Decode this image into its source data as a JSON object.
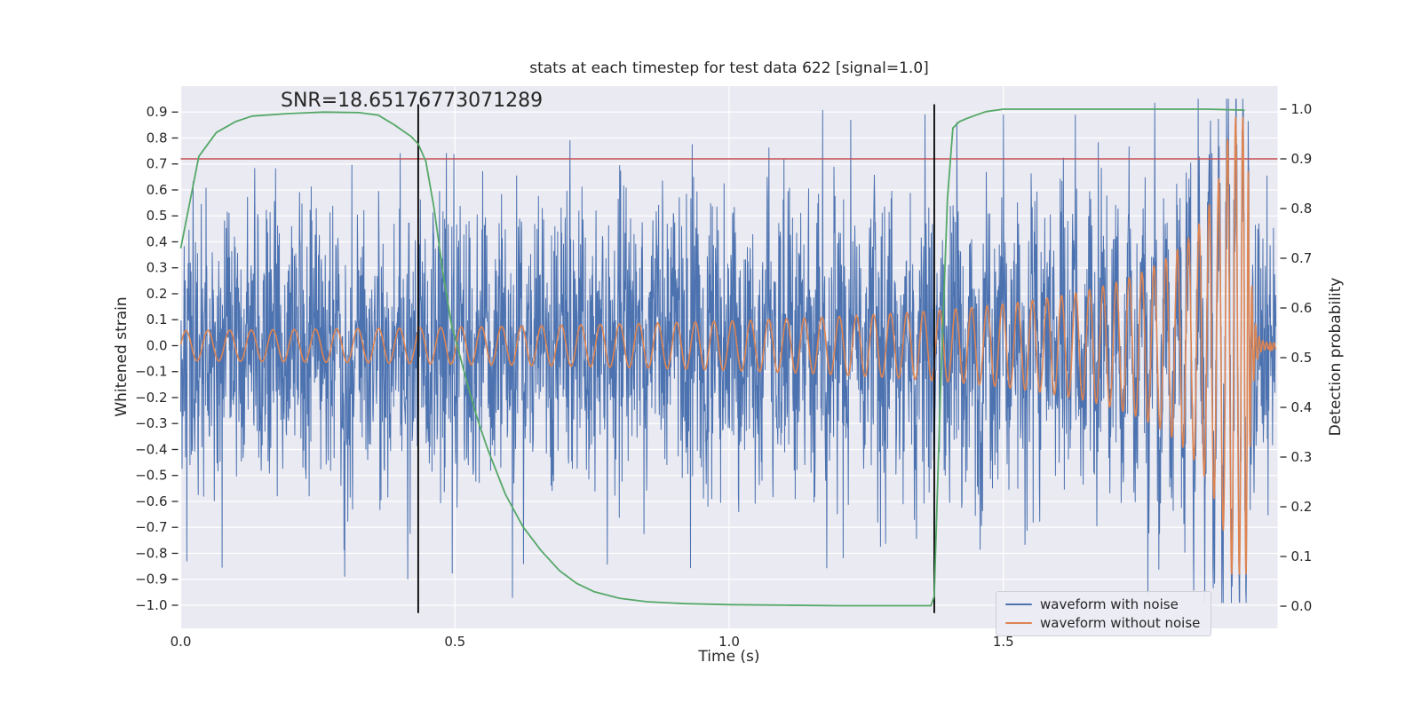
{
  "figure": {
    "title": "stats at each timestep for test data 622 [signal=1.0]"
  },
  "annotation": {
    "text": "SNR=18.65176773071289",
    "x": 0.185,
    "y_left_axis": 0.95
  },
  "legend": {
    "position": "lower right",
    "items": [
      {
        "label": "waveform with noise",
        "color": "#4C72B0"
      },
      {
        "label": "waveform without noise",
        "color": "#DD8452"
      }
    ]
  },
  "chart_data": {
    "type": "line",
    "title": "stats at each timestep for test data 622 [signal=1.0]",
    "xlabel": "Time (s)",
    "ylabel_left": "Whitened strain",
    "ylabel_right": "Detection probability",
    "xlim": [
      0.0,
      2.0
    ],
    "ylim_left": [
      -1.089,
      1.0
    ],
    "ylim_right": [
      -0.0446,
      1.0464
    ],
    "grid": true,
    "plot_bg": "#EAEAF2",
    "grid_color": "#FFFFFF",
    "text_color": "#262626",
    "xticks": {
      "values": [
        0.0,
        0.5,
        1.0,
        1.5
      ],
      "labels": [
        "0.0",
        "0.5",
        "1.0",
        "1.5"
      ]
    },
    "yticks_left": {
      "values": [
        0.9,
        0.8,
        0.7,
        0.6,
        0.5,
        0.4,
        0.3,
        0.2,
        0.1,
        0.0,
        -0.1,
        -0.2,
        -0.3,
        -0.4,
        -0.5,
        -0.6,
        -0.7,
        -0.8,
        -0.9,
        -1.0
      ],
      "labels": [
        "0.9",
        "0.8",
        "0.7",
        "0.6",
        "0.5",
        "0.4",
        "0.3",
        "0.2",
        "0.1",
        "0.0",
        "−0.1",
        "−0.2",
        "−0.3",
        "−0.4",
        "−0.5",
        "−0.6",
        "−0.7",
        "−0.8",
        "−0.9",
        "−1.0"
      ]
    },
    "yticks_right": {
      "values": [
        1.0,
        0.9,
        0.8,
        0.7,
        0.6,
        0.5,
        0.4,
        0.3,
        0.2,
        0.1,
        0.0
      ],
      "labels": [
        "1.0",
        "0.9",
        "0.8",
        "0.7",
        "0.6",
        "0.5",
        "0.4",
        "0.3",
        "0.2",
        "0.1",
        "0.0"
      ]
    },
    "threshold_line": {
      "axis": "right",
      "value": 0.9,
      "color": "#C44E52"
    },
    "vlines": {
      "xs": [
        0.433,
        1.374
      ],
      "color": "#000000",
      "ymin_left_axis": -1.03,
      "ymax_left_axis": 0.93
    },
    "series": [
      {
        "name": "waveform with noise",
        "axis": "left",
        "color": "#4C72B0",
        "kind": "gaussian_noise_plus_signal",
        "seed": 42,
        "samples": 3200,
        "noise_std": 0.27,
        "noise_clip": 0.93,
        "t_end": 1.997,
        "notable_peaks": [
          [
            0.605,
            -0.97
          ],
          [
            0.625,
            -0.84
          ],
          [
            0.4,
            0.74
          ],
          [
            0.71,
            0.79
          ],
          [
            1.1,
            0.72
          ],
          [
            1.357,
            0.89
          ],
          [
            1.415,
            0.86
          ],
          [
            1.5,
            0.89
          ],
          [
            1.88,
            0.74
          ]
        ]
      },
      {
        "name": "waveform without noise",
        "axis": "left",
        "color": "#DD8452",
        "kind": "chirp",
        "a0": 0.058,
        "amp_exp": 0.7,
        "f0": 25,
        "freq_exp": 0.25,
        "t_merger": 1.945,
        "peak_amplitude": 0.88,
        "ringdown_tau": 0.006,
        "ringdown_freq": 150,
        "t_end": 1.997,
        "end_dot": {
          "t": 1.988,
          "v": -0.01
        }
      },
      {
        "name": "detection probability",
        "axis": "right",
        "color": "#55A868",
        "kind": "points",
        "points": [
          [
            0.0,
            0.72
          ],
          [
            0.033,
            0.905
          ],
          [
            0.065,
            0.953
          ],
          [
            0.1,
            0.975
          ],
          [
            0.13,
            0.986
          ],
          [
            0.195,
            0.991
          ],
          [
            0.26,
            0.994
          ],
          [
            0.325,
            0.993
          ],
          [
            0.36,
            0.988
          ],
          [
            0.39,
            0.968
          ],
          [
            0.42,
            0.945
          ],
          [
            0.433,
            0.93
          ],
          [
            0.447,
            0.895
          ],
          [
            0.462,
            0.8
          ],
          [
            0.478,
            0.672
          ],
          [
            0.494,
            0.565
          ],
          [
            0.51,
            0.5
          ],
          [
            0.527,
            0.43
          ],
          [
            0.543,
            0.37
          ],
          [
            0.56,
            0.315
          ],
          [
            0.592,
            0.225
          ],
          [
            0.624,
            0.16
          ],
          [
            0.657,
            0.112
          ],
          [
            0.69,
            0.072
          ],
          [
            0.722,
            0.046
          ],
          [
            0.754,
            0.029
          ],
          [
            0.8,
            0.016
          ],
          [
            0.85,
            0.009
          ],
          [
            0.92,
            0.005
          ],
          [
            1.0,
            0.003
          ],
          [
            1.1,
            0.002
          ],
          [
            1.2,
            0.001
          ],
          [
            1.3,
            0.001
          ],
          [
            1.368,
            0.001
          ],
          [
            1.374,
            0.02
          ],
          [
            1.385,
            0.42
          ],
          [
            1.398,
            0.82
          ],
          [
            1.408,
            0.962
          ],
          [
            1.42,
            0.975
          ],
          [
            1.435,
            0.982
          ],
          [
            1.45,
            0.988
          ],
          [
            1.468,
            0.995
          ],
          [
            1.5,
            1.0
          ],
          [
            1.6,
            1.0
          ],
          [
            1.7,
            1.0
          ],
          [
            1.8,
            1.0
          ],
          [
            1.872,
            1.0
          ],
          [
            1.94,
            0.998
          ]
        ]
      }
    ]
  }
}
